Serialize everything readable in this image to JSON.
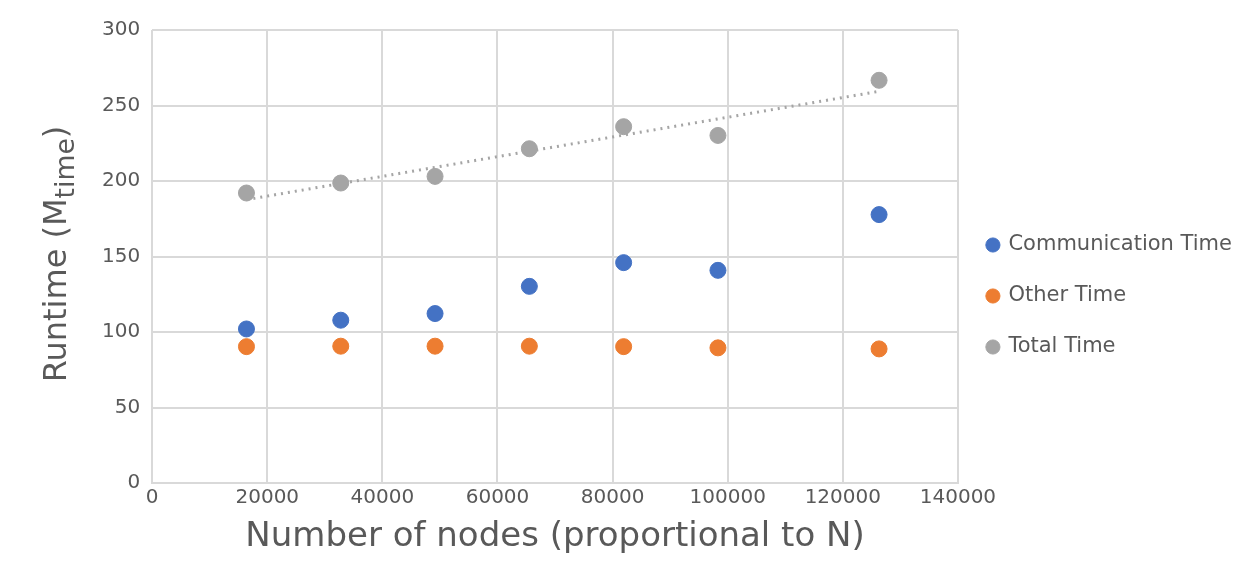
{
  "chart_data": {
    "type": "scatter",
    "xlabel": "Number of nodes (proportional to N)",
    "ylabel": "Runtime (M$_{time}$)",
    "x": [
      16384,
      32768,
      49152,
      65536,
      81920,
      98304,
      126300
    ],
    "series": [
      {
        "name": "Communication Time",
        "color": "#4472c4",
        "values": [
          102.1,
          107.9,
          112.3,
          130.3,
          146.0,
          140.9,
          177.8
        ]
      },
      {
        "name": "Other Time",
        "color": "#ed7d31",
        "values": [
          90.4,
          90.7,
          90.7,
          90.7,
          90.4,
          89.6,
          88.9
        ]
      },
      {
        "name": "Total Time",
        "color": "#a5a5a5",
        "values": [
          192.1,
          198.7,
          203.1,
          221.4,
          236.0,
          230.2,
          266.7
        ]
      },
      {
        "type": "line",
        "color": "#a5a5a5",
        "x": [
          16384,
          126300
        ],
        "values": [
          187.7,
          259.4
        ],
        "line_style": "dotted",
        "marker": "none"
      }
    ],
    "xlim": [
      0,
      140000
    ],
    "xticks": [
      0,
      20000,
      40000,
      60000,
      80000,
      100000,
      120000,
      140000
    ],
    "ylim": [
      0,
      300
    ],
    "yticks": [
      0,
      50,
      100,
      150,
      200,
      250,
      300
    ],
    "grid": true,
    "legend": "right",
    "marker": "circle"
  }
}
